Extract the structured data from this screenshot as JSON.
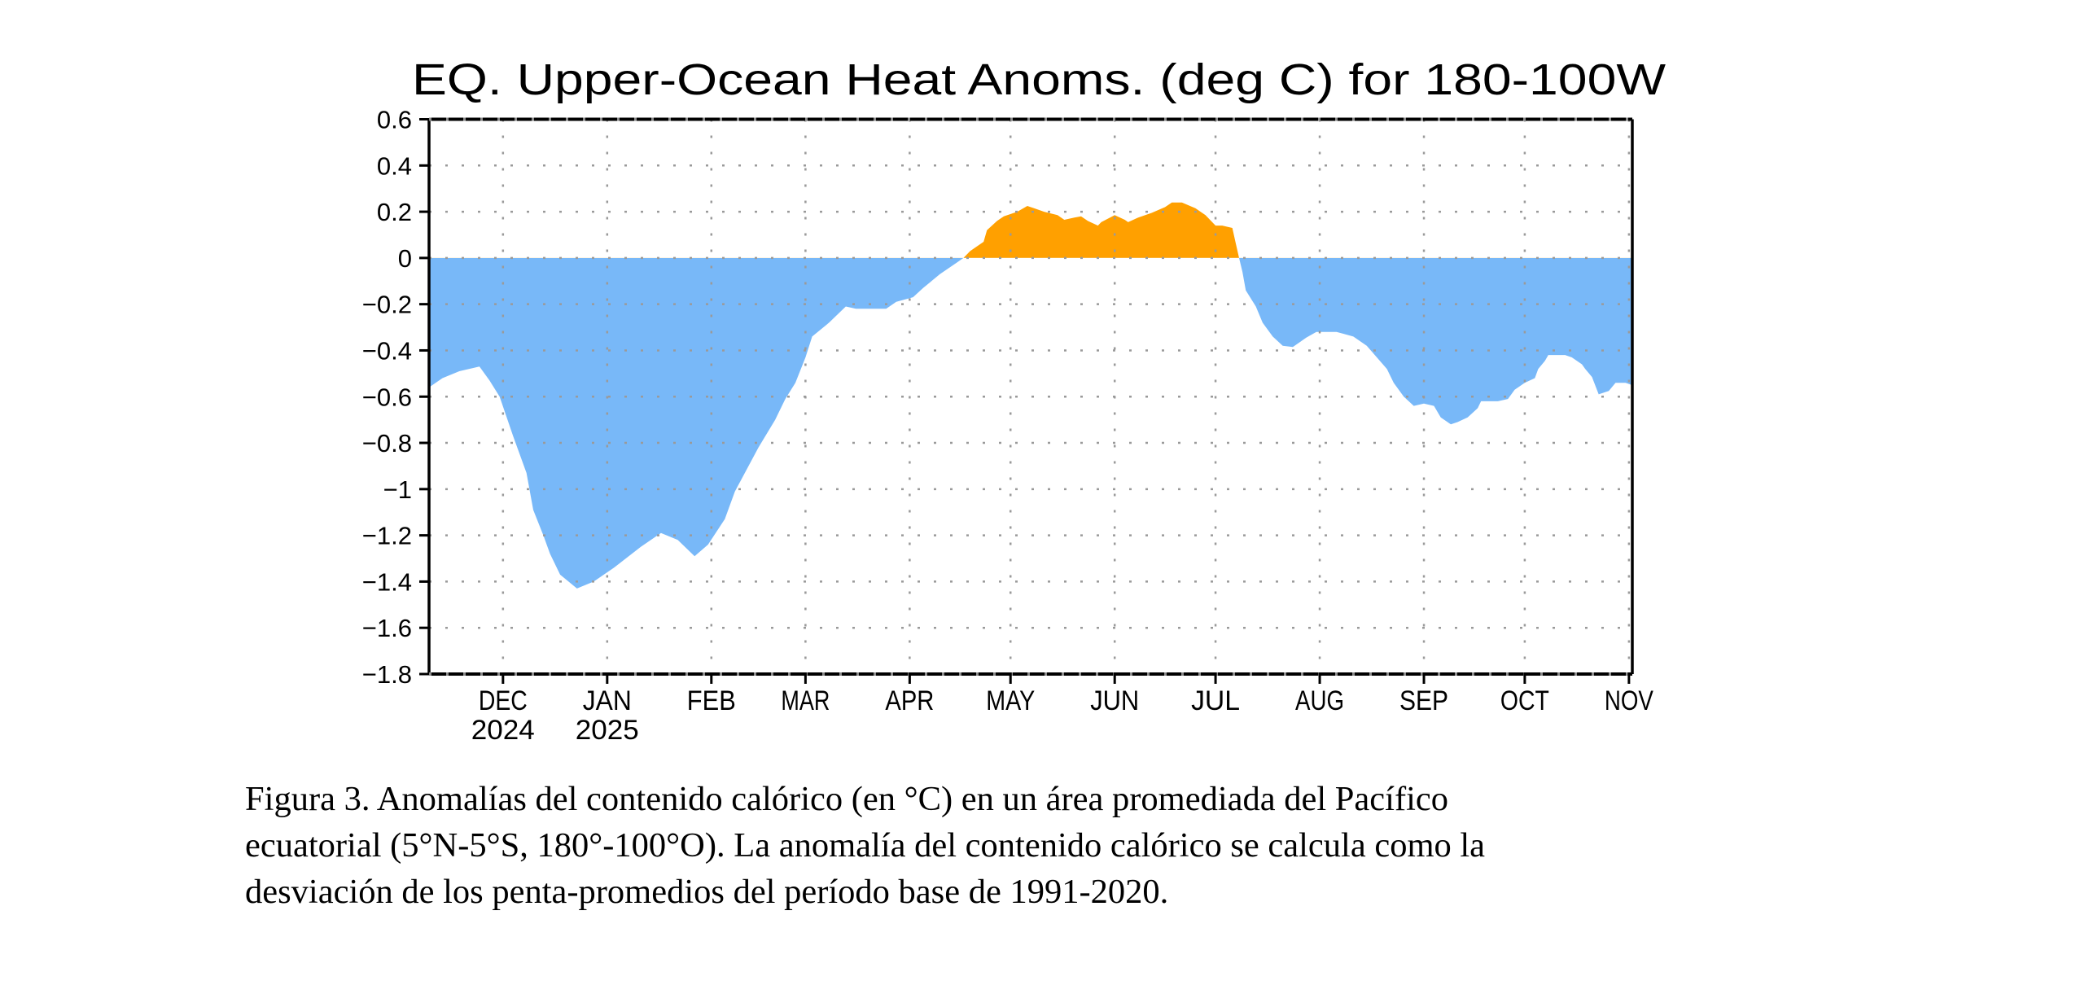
{
  "chart_data": {
    "type": "area",
    "title": "EQ. Upper-Ocean Heat Anoms. (deg C) for 180-100W",
    "xlabel": "",
    "ylabel": "",
    "x_type": "date",
    "xlim": [
      "2024-11-09",
      "2025-11-02"
    ],
    "ylim": [
      -1.8,
      0.6
    ],
    "yticks": [
      0.6,
      0.4,
      0.2,
      0,
      -0.2,
      -0.4,
      -0.6,
      -0.8,
      -1,
      -1.2,
      -1.4,
      -1.6,
      -1.8
    ],
    "ytick_labels": [
      "0.6",
      "0.4",
      "0.2",
      "0",
      "-0.2",
      "-0.4",
      "-0.6",
      "-0.8",
      "-1",
      "-1.2",
      "-1.4",
      "-1.6",
      "-1.8"
    ],
    "xticks": [
      {
        "date": "2024-12-01",
        "label": "DEC",
        "sublabel": "2024"
      },
      {
        "date": "2025-01-01",
        "label": "JAN",
        "sublabel": "2025"
      },
      {
        "date": "2025-02-01",
        "label": "FEB",
        "sublabel": ""
      },
      {
        "date": "2025-03-01",
        "label": "MAR",
        "sublabel": ""
      },
      {
        "date": "2025-04-01",
        "label": "APR",
        "sublabel": ""
      },
      {
        "date": "2025-05-01",
        "label": "MAY",
        "sublabel": ""
      },
      {
        "date": "2025-06-01",
        "label": "JUN",
        "sublabel": ""
      },
      {
        "date": "2025-07-01",
        "label": "JUL",
        "sublabel": ""
      },
      {
        "date": "2025-08-01",
        "label": "AUG",
        "sublabel": ""
      },
      {
        "date": "2025-09-01",
        "label": "SEP",
        "sublabel": ""
      },
      {
        "date": "2025-10-01",
        "label": "OCT",
        "sublabel": ""
      },
      {
        "date": "2025-11-01",
        "label": "NOV",
        "sublabel": ""
      }
    ],
    "grid": true,
    "legend": "none",
    "fill_colors": {
      "positive": "#FFA000",
      "negative": "#78B8F8"
    },
    "series": [
      {
        "name": "Upper-ocean heat content anomaly (deg C)",
        "points": [
          [
            "2024-11-09",
            -0.56
          ],
          [
            "2024-11-13",
            -0.52
          ],
          [
            "2024-11-18",
            -0.49
          ],
          [
            "2024-11-24",
            -0.47
          ],
          [
            "2024-11-27",
            -0.53
          ],
          [
            "2024-11-30",
            -0.6
          ],
          [
            "2024-12-04",
            -0.77
          ],
          [
            "2024-12-08",
            -0.93
          ],
          [
            "2024-12-10",
            -1.09
          ],
          [
            "2024-12-13",
            -1.2
          ],
          [
            "2024-12-15",
            -1.28
          ],
          [
            "2024-12-18",
            -1.37
          ],
          [
            "2024-12-23",
            -1.43
          ],
          [
            "2024-12-28",
            -1.4
          ],
          [
            "2025-01-03",
            -1.34
          ],
          [
            "2025-01-11",
            -1.25
          ],
          [
            "2025-01-17",
            -1.19
          ],
          [
            "2025-01-22",
            -1.22
          ],
          [
            "2025-01-27",
            -1.29
          ],
          [
            "2025-01-31",
            -1.24
          ],
          [
            "2025-02-05",
            -1.13
          ],
          [
            "2025-02-08",
            -1.01
          ],
          [
            "2025-02-15",
            -0.82
          ],
          [
            "2025-02-20",
            -0.7
          ],
          [
            "2025-02-23",
            -0.61
          ],
          [
            "2025-02-26",
            -0.54
          ],
          [
            "2025-03-01",
            -0.43
          ],
          [
            "2025-03-03",
            -0.34
          ],
          [
            "2025-03-08",
            -0.28
          ],
          [
            "2025-03-13",
            -0.21
          ],
          [
            "2025-03-16",
            -0.22
          ],
          [
            "2025-03-25",
            -0.22
          ],
          [
            "2025-03-28",
            -0.19
          ],
          [
            "2025-04-02",
            -0.17
          ],
          [
            "2025-04-05",
            -0.13
          ],
          [
            "2025-04-10",
            -0.07
          ],
          [
            "2025-04-15",
            -0.02
          ],
          [
            "2025-04-17",
            0.0
          ],
          [
            "2025-04-19",
            0.03
          ],
          [
            "2025-04-23",
            0.07
          ],
          [
            "2025-04-24",
            0.12
          ],
          [
            "2025-04-27",
            0.16
          ],
          [
            "2025-04-29",
            0.18
          ],
          [
            "2025-05-03",
            0.2
          ],
          [
            "2025-05-06",
            0.225
          ],
          [
            "2025-05-08",
            0.215
          ],
          [
            "2025-05-11",
            0.2
          ],
          [
            "2025-05-15",
            0.185
          ],
          [
            "2025-05-17",
            0.165
          ],
          [
            "2025-05-20",
            0.175
          ],
          [
            "2025-05-22",
            0.18
          ],
          [
            "2025-05-24",
            0.16
          ],
          [
            "2025-05-27",
            0.14
          ],
          [
            "2025-05-28",
            0.155
          ],
          [
            "2025-06-01",
            0.185
          ],
          [
            "2025-06-04",
            0.165
          ],
          [
            "2025-06-05",
            0.155
          ],
          [
            "2025-06-08",
            0.175
          ],
          [
            "2025-06-12",
            0.195
          ],
          [
            "2025-06-16",
            0.22
          ],
          [
            "2025-06-18",
            0.24
          ],
          [
            "2025-06-21",
            0.24
          ],
          [
            "2025-06-25",
            0.215
          ],
          [
            "2025-06-28",
            0.185
          ],
          [
            "2025-07-01",
            0.14
          ],
          [
            "2025-07-03",
            0.14
          ],
          [
            "2025-07-06",
            0.13
          ],
          [
            "2025-07-07",
            0.065
          ],
          [
            "2025-07-08",
            0.0
          ],
          [
            "2025-07-09",
            -0.06
          ],
          [
            "2025-07-10",
            -0.14
          ],
          [
            "2025-07-13",
            -0.21
          ],
          [
            "2025-07-15",
            -0.28
          ],
          [
            "2025-07-18",
            -0.34
          ],
          [
            "2025-07-21",
            -0.38
          ],
          [
            "2025-07-24",
            -0.385
          ],
          [
            "2025-07-26",
            -0.365
          ],
          [
            "2025-07-28",
            -0.345
          ],
          [
            "2025-07-31",
            -0.32
          ],
          [
            "2025-08-06",
            -0.32
          ],
          [
            "2025-08-11",
            -0.34
          ],
          [
            "2025-08-15",
            -0.38
          ],
          [
            "2025-08-18",
            -0.43
          ],
          [
            "2025-08-21",
            -0.48
          ],
          [
            "2025-08-23",
            -0.54
          ],
          [
            "2025-08-26",
            -0.6
          ],
          [
            "2025-08-29",
            -0.64
          ],
          [
            "2025-09-01",
            -0.63
          ],
          [
            "2025-09-04",
            -0.64
          ],
          [
            "2025-09-06",
            -0.69
          ],
          [
            "2025-09-09",
            -0.72
          ],
          [
            "2025-09-11",
            -0.71
          ],
          [
            "2025-09-14",
            -0.69
          ],
          [
            "2025-09-17",
            -0.65
          ],
          [
            "2025-09-18",
            -0.62
          ],
          [
            "2025-09-23",
            -0.62
          ],
          [
            "2025-09-26",
            -0.61
          ],
          [
            "2025-09-28",
            -0.57
          ],
          [
            "2025-10-01",
            -0.54
          ],
          [
            "2025-10-04",
            -0.52
          ],
          [
            "2025-10-05",
            -0.48
          ],
          [
            "2025-10-07",
            -0.445
          ],
          [
            "2025-10-08",
            -0.42
          ],
          [
            "2025-10-13",
            -0.42
          ],
          [
            "2025-10-15",
            -0.43
          ],
          [
            "2025-10-18",
            -0.46
          ],
          [
            "2025-10-19",
            -0.48
          ],
          [
            "2025-10-21",
            -0.515
          ],
          [
            "2025-10-23",
            -0.59
          ],
          [
            "2025-10-26",
            -0.575
          ],
          [
            "2025-10-28",
            -0.54
          ],
          [
            "2025-10-31",
            -0.54
          ],
          [
            "2025-11-02",
            -0.55
          ]
        ]
      }
    ]
  },
  "caption": {
    "lines": [
      "Figura 3. Anomalías del contenido calórico (en °C) en un área promediada del Pacífico",
      "ecuatorial (5°N-5°S, 180°-100°O). La anomalía del contenido calórico se calcula como la",
      "desviación de los penta-promedios del período base de 1991-2020."
    ]
  }
}
